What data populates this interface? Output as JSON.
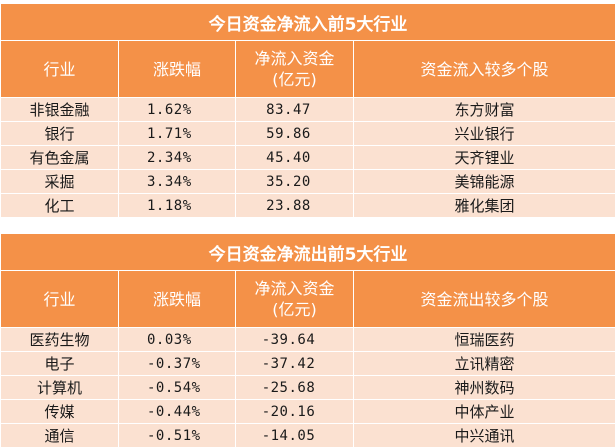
{
  "inflow": {
    "title": "今日资金净流入前5大行业",
    "headers": [
      "行业",
      "涨跌幅",
      "净流入资金",
      "(亿元)",
      "资金流入较多个股"
    ],
    "rows": [
      {
        "sector": "非银金融",
        "change": "1.62%",
        "net": "83.47",
        "stock": "东方财富"
      },
      {
        "sector": "银行",
        "change": "1.71%",
        "net": "59.86",
        "stock": "兴业银行"
      },
      {
        "sector": "有色金属",
        "change": "2.34%",
        "net": "45.40",
        "stock": "天齐锂业"
      },
      {
        "sector": "采掘",
        "change": "3.34%",
        "net": "35.20",
        "stock": "美锦能源"
      },
      {
        "sector": "化工",
        "change": "1.18%",
        "net": "23.88",
        "stock": "雅化集团"
      }
    ]
  },
  "outflow": {
    "title": "今日资金净流出前5大行业",
    "headers": [
      "行业",
      "涨跌幅",
      "净流入资金",
      "(亿元)",
      "资金流出较多个股"
    ],
    "rows": [
      {
        "sector": "医药生物",
        "change": "0.03%",
        "net": "-39.64",
        "stock": "恒瑞医药"
      },
      {
        "sector": "电子",
        "change": "-0.37%",
        "net": "-37.42",
        "stock": "立讯精密"
      },
      {
        "sector": "计算机",
        "change": "-0.54%",
        "net": "-25.68",
        "stock": "神州数码"
      },
      {
        "sector": "传媒",
        "change": "-0.44%",
        "net": "-20.16",
        "stock": "中体产业"
      },
      {
        "sector": "通信",
        "change": "-0.51%",
        "net": "-14.05",
        "stock": "中兴通讯"
      }
    ]
  }
}
